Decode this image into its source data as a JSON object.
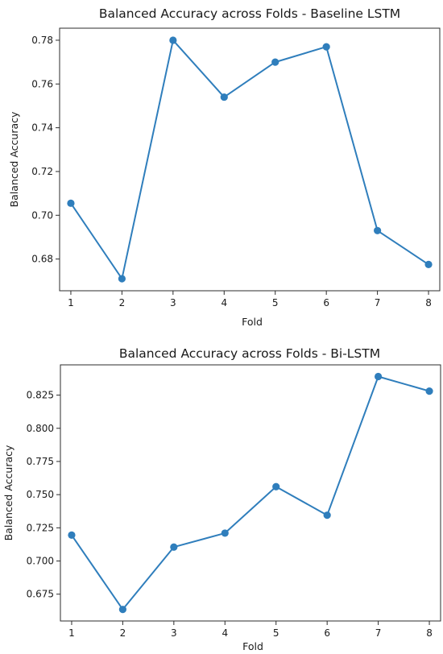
{
  "chart_data": [
    {
      "type": "line",
      "title": "Balanced Accuracy across Folds - Baseline LSTM",
      "xlabel": "Fold",
      "ylabel": "Balanced Accuracy",
      "x": [
        1,
        2,
        3,
        4,
        5,
        6,
        7,
        8
      ],
      "series": [
        {
          "values": [
            0.7055,
            0.671,
            0.78,
            0.754,
            0.77,
            0.777,
            0.693,
            0.6775
          ]
        }
      ],
      "xlim": [
        0.78,
        8.22
      ],
      "ylim": [
        0.6655,
        0.7855
      ],
      "xticks": [
        1,
        2,
        3,
        4,
        5,
        6,
        7,
        8
      ],
      "yticks": [
        0.68,
        0.7,
        0.72,
        0.74,
        0.76,
        0.78
      ],
      "ytick_labels": [
        "0.68",
        "0.70",
        "0.72",
        "0.74",
        "0.76",
        "0.78"
      ],
      "grid": false,
      "legend": "none",
      "color": "#2f7ebc",
      "marker": "circle"
    },
    {
      "type": "line",
      "title": "Balanced Accuracy across Folds - Bi-LSTM",
      "xlabel": "Fold",
      "ylabel": "Balanced Accuracy",
      "x": [
        1,
        2,
        3,
        4,
        5,
        6,
        7,
        8
      ],
      "series": [
        {
          "values": [
            0.7195,
            0.6635,
            0.7105,
            0.721,
            0.756,
            0.7345,
            0.839,
            0.828
          ]
        }
      ],
      "xlim": [
        0.78,
        8.22
      ],
      "ylim": [
        0.6548,
        0.8478
      ],
      "xticks": [
        1,
        2,
        3,
        4,
        5,
        6,
        7,
        8
      ],
      "yticks": [
        0.675,
        0.7,
        0.725,
        0.75,
        0.775,
        0.8,
        0.825
      ],
      "ytick_labels": [
        "0.675",
        "0.700",
        "0.725",
        "0.750",
        "0.775",
        "0.800",
        "0.825"
      ],
      "grid": false,
      "legend": "none",
      "color": "#2f7ebc",
      "marker": "circle"
    }
  ]
}
